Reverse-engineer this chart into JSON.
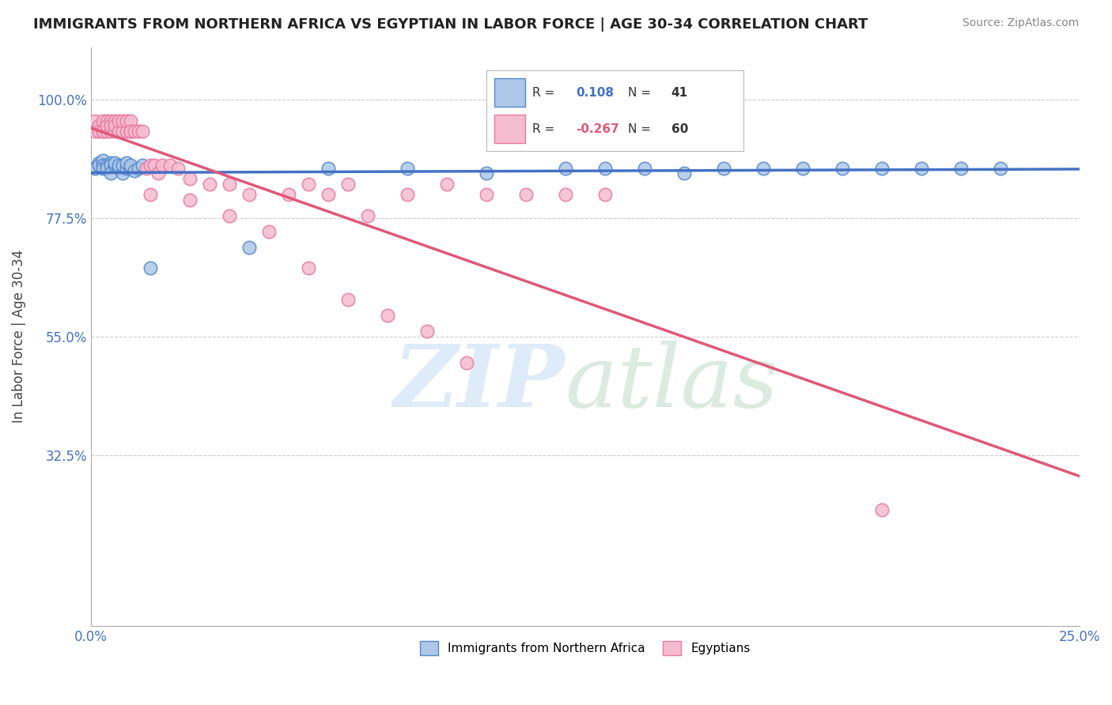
{
  "title": "IMMIGRANTS FROM NORTHERN AFRICA VS EGYPTIAN IN LABOR FORCE | AGE 30-34 CORRELATION CHART",
  "source": "Source: ZipAtlas.com",
  "ylabel": "In Labor Force | Age 30-34",
  "xlim": [
    0.0,
    0.25
  ],
  "ylim": [
    0.0,
    1.1
  ],
  "blue_R": 0.108,
  "blue_N": 41,
  "pink_R": -0.267,
  "pink_N": 60,
  "blue_color": "#adc8e8",
  "blue_edge": "#5588cc",
  "pink_color": "#f5bcd0",
  "pink_edge": "#e87aa0",
  "blue_line_color": "#4472c4",
  "pink_line_color": "#e05878",
  "legend_label_blue": "Immigrants from Northern Africa",
  "legend_label_pink": "Egyptians",
  "blue_x": [
    0.001,
    0.002,
    0.002,
    0.003,
    0.003,
    0.003,
    0.004,
    0.004,
    0.005,
    0.005,
    0.005,
    0.006,
    0.006,
    0.007,
    0.007,
    0.008,
    0.008,
    0.009,
    0.009,
    0.01,
    0.01,
    0.011,
    0.012,
    0.013,
    0.015,
    0.04,
    0.06,
    0.08,
    0.1,
    0.12,
    0.13,
    0.14,
    0.15,
    0.16,
    0.17,
    0.18,
    0.19,
    0.2,
    0.21,
    0.22,
    0.23
  ],
  "blue_y": [
    0.87,
    0.88,
    0.875,
    0.885,
    0.875,
    0.87,
    0.875,
    0.87,
    0.88,
    0.875,
    0.86,
    0.875,
    0.88,
    0.87,
    0.875,
    0.86,
    0.875,
    0.87,
    0.88,
    0.87,
    0.875,
    0.865,
    0.87,
    0.875,
    0.68,
    0.72,
    0.87,
    0.87,
    0.86,
    0.87,
    0.87,
    0.87,
    0.86,
    0.87,
    0.87,
    0.87,
    0.87,
    0.87,
    0.87,
    0.87,
    0.87
  ],
  "pink_x": [
    0.001,
    0.001,
    0.002,
    0.002,
    0.003,
    0.003,
    0.003,
    0.004,
    0.004,
    0.004,
    0.005,
    0.005,
    0.005,
    0.006,
    0.006,
    0.006,
    0.007,
    0.007,
    0.008,
    0.008,
    0.009,
    0.009,
    0.01,
    0.01,
    0.01,
    0.011,
    0.012,
    0.013,
    0.014,
    0.015,
    0.016,
    0.017,
    0.018,
    0.02,
    0.022,
    0.025,
    0.03,
    0.035,
    0.04,
    0.05,
    0.055,
    0.06,
    0.065,
    0.07,
    0.08,
    0.09,
    0.1,
    0.11,
    0.12,
    0.13,
    0.015,
    0.025,
    0.035,
    0.045,
    0.055,
    0.065,
    0.075,
    0.085,
    0.095,
    0.2
  ],
  "pink_y": [
    0.94,
    0.96,
    0.95,
    0.94,
    0.94,
    0.96,
    0.94,
    0.94,
    0.96,
    0.95,
    0.94,
    0.96,
    0.95,
    0.94,
    0.96,
    0.95,
    0.94,
    0.96,
    0.94,
    0.96,
    0.94,
    0.96,
    0.94,
    0.96,
    0.94,
    0.94,
    0.94,
    0.94,
    0.87,
    0.875,
    0.875,
    0.86,
    0.875,
    0.875,
    0.87,
    0.85,
    0.84,
    0.84,
    0.82,
    0.82,
    0.84,
    0.82,
    0.84,
    0.78,
    0.82,
    0.84,
    0.82,
    0.82,
    0.82,
    0.82,
    0.82,
    0.81,
    0.78,
    0.75,
    0.68,
    0.62,
    0.59,
    0.56,
    0.5,
    0.22
  ]
}
